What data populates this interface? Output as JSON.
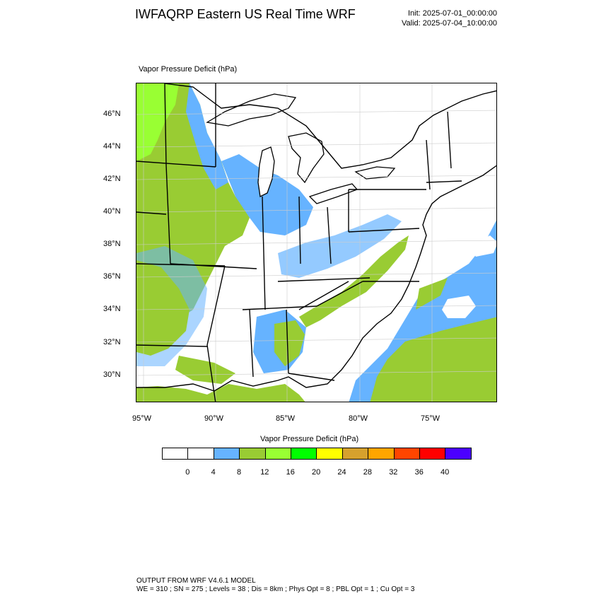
{
  "header": {
    "title": "IWFAQRP Eastern US Real Time WRF",
    "init": "Init: 2025-07-01_00:00:00",
    "valid": "Valid: 2025-07-04_10:00:00"
  },
  "map": {
    "field_label": "Vapor Pressure Deficit   (hPa)",
    "lat_labels": [
      "46°N",
      "44°N",
      "42°N",
      "40°N",
      "38°N",
      "36°N",
      "34°N",
      "32°N",
      "30°N"
    ],
    "lon_labels": [
      "95°W",
      "90°W",
      "85°W",
      "80°W",
      "75°W"
    ],
    "colors": {
      "water": "#ffffff",
      "low_vpd": "#66b3ff",
      "mid_vpd": "#99cc33",
      "high_vpd": "#99ff33",
      "border": "#000000"
    }
  },
  "legend": {
    "title": "Vapor Pressure Deficit  (hPa)",
    "colors": [
      "#ffffff",
      "#ffffff",
      "#66b3ff",
      "#99cc33",
      "#99ff33",
      "#00ff00",
      "#ffff00",
      "#d6a12d",
      "#ffa500",
      "#ff4500",
      "#ff0000",
      "#4b00ff"
    ],
    "labels": [
      "0",
      "4",
      "8",
      "12",
      "16",
      "20",
      "24",
      "28",
      "32",
      "36",
      "40"
    ]
  },
  "footer": {
    "line1": "OUTPUT FROM WRF V4.6.1 MODEL",
    "line2": "WE = 310 ; SN = 275 ; Levels = 38 ; Dis = 8km ; Phys Opt = 8 ; PBL Opt = 1 ; Cu Opt = 3"
  }
}
